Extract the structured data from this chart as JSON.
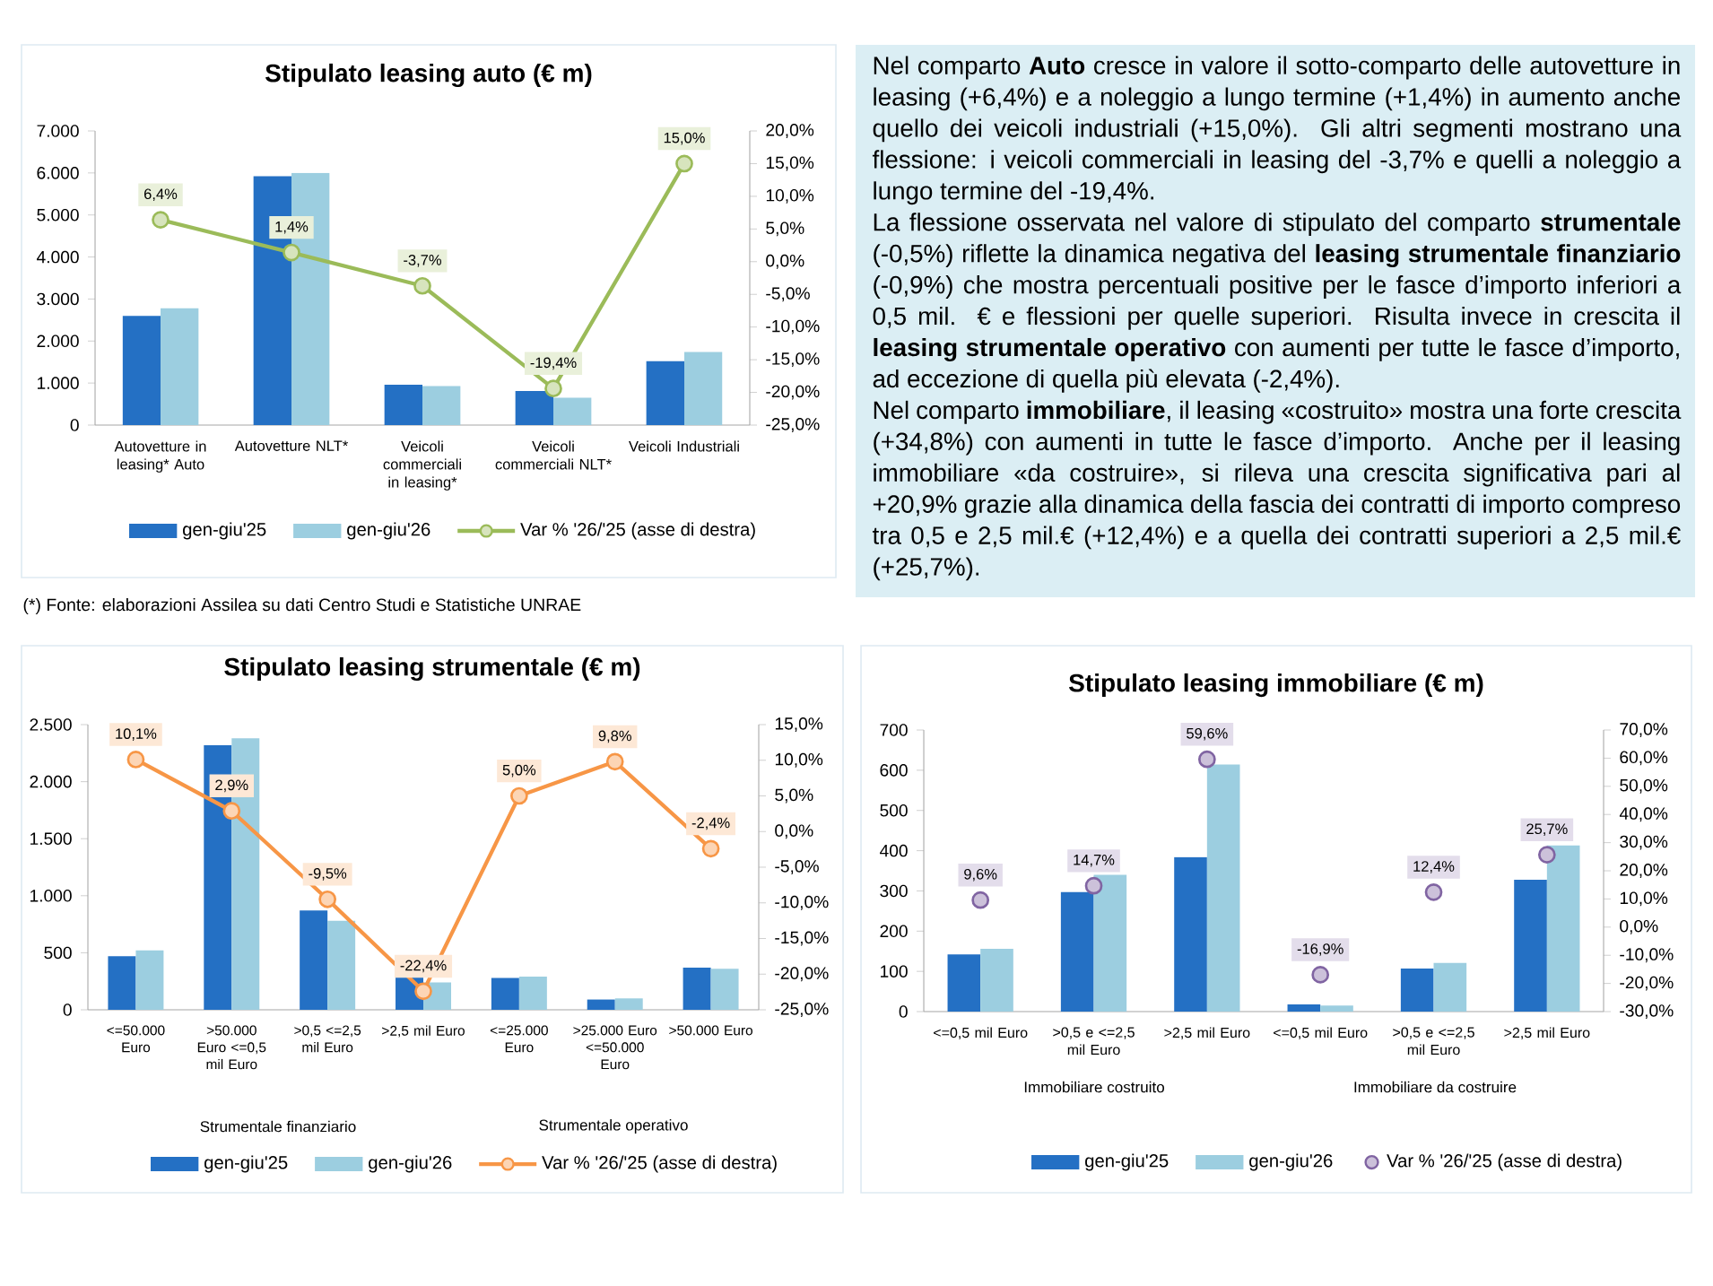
{
  "chart_data": [
    {
      "type": "bar",
      "title": "Stipulato leasing auto (€ m)",
      "categories": [
        "Autovetture in leasing* Auto",
        "Autovetture NLT*",
        "Veicoli commerciali in leasing*",
        "Veicoli commerciali NLT*",
        "Veicoli Industriali"
      ],
      "series": [
        {
          "name": "gen-giu'25",
          "color": "#2470c4",
          "values": [
            2600,
            5920,
            960,
            810,
            1520
          ]
        },
        {
          "name": "gen-giu'26",
          "color": "#9ccee0",
          "values": [
            2780,
            6000,
            930,
            650,
            1740
          ]
        },
        {
          "name": "Var % '26/'25 (asse di destra)",
          "type": "line",
          "axis": "y2",
          "color": "#9bbb59",
          "values": [
            6.4,
            1.4,
            -3.7,
            -19.4,
            15.0
          ],
          "value_labels": [
            "6,4%",
            "1,4%",
            "-3,7%",
            "-19,4%",
            "15,0%"
          ]
        }
      ],
      "ylim": [
        0,
        7000
      ],
      "yticks": [
        0,
        {
          "value": 1000,
          "label": "1.000"
        },
        {
          "value": 2000,
          "label": "2.000"
        },
        {
          "value": 3000,
          "label": "3.000"
        },
        {
          "value": 4000,
          "label": "4.000"
        },
        {
          "value": 5000,
          "label": "5.000"
        },
        {
          "value": 6000,
          "label": "6.000"
        },
        {
          "value": 7000,
          "label": "7.000"
        }
      ],
      "y2lim": [
        -25,
        20
      ],
      "y2ticks": [
        {
          "value": -25,
          "label": "-25,0%"
        },
        {
          "value": -20,
          "label": "-20,0%"
        },
        {
          "value": -15,
          "label": "-15,0%"
        },
        {
          "value": -10,
          "label": "-10,0%"
        },
        {
          "value": -5,
          "label": "-5,0%"
        },
        {
          "value": 0,
          "label": "0,0%"
        },
        {
          "value": 5,
          "label": "5,0%"
        },
        {
          "value": 10,
          "label": "10,0%"
        },
        {
          "value": 15,
          "label": "15,0%"
        },
        {
          "value": 20,
          "label": "20,0%"
        }
      ],
      "marker": "circle",
      "legend": "bottom",
      "annotations": [
        "(*) Fonte: elaborazioni Assilea su dati Centro Studi e Statistiche UNRAE"
      ]
    },
    {
      "type": "other",
      "annotations": [
        "Nel comparto **Auto** cresce in valore il sotto-comparto delle autovetture in leasing (+6,4%) e a noleggio a lungo termine (+1,4%) in aumento anche quello dei veicoli industriali (+15,0%). Gli altri segmenti mostrano una flessione: i veicoli commerciali in leasing del -3,7% e quelli a noleggio a lungo termine del -19,4%.",
        "La flessione osservata nel valore di stipulato del comparto **strumentale** (-0,5%) riflette la dinamica negativa del **leasing strumentale finanziario** (-0,9%) che mostra percentuali positive per le fasce d’importo inferiori a 0,5 mil. € e flessioni per quelle superiori. Risulta invece in crescita il **leasing strumentale operativo** con aumenti per tutte le fasce d’importo, ad eccezione di quella più elevata (-2,4%).",
        "Nel comparto **immobiliare**, il leasing «costruito» mostra una forte crescita (+34,8%) con aumenti in tutte le fasce d’importo. Anche per il leasing immobiliare «da costruire», si rileva una crescita significativa pari al +20,9% grazie alla dinamica della fascia dei contratti di importo compreso tra 0,5 e 2,5 mil.€ (+12,4%) e a quella dei contratti superiori a 2,5 mil.€ (+25,7%)."
      ]
    },
    {
      "type": "bar",
      "title": "Stipulato leasing strumentale (€ m)",
      "categories": [
        "<=50.000 Euro",
        ">50.000 Euro <=0,5 mil Euro",
        ">0,5 <=2,5 mil Euro",
        ">2,5 mil Euro",
        "<=25.000 Euro",
        ">25.000 Euro <=50.000 Euro",
        ">50.000 Euro"
      ],
      "series": [
        {
          "name": "gen-giu'25",
          "color": "#2470c4",
          "values": [
            470,
            2320,
            870,
            300,
            280,
            90,
            370
          ]
        },
        {
          "name": "gen-giu'26",
          "color": "#9ccee0",
          "values": [
            520,
            2380,
            780,
            240,
            290,
            100,
            360
          ]
        },
        {
          "name": "Var % '26/'25 (asse di destra)",
          "type": "line",
          "axis": "y2",
          "color": "#f79646",
          "values": [
            10.1,
            2.9,
            -9.5,
            -22.4,
            5.0,
            9.8,
            -2.4
          ],
          "value_labels": [
            "10,1%",
            "2,9%",
            "-9,5%",
            "-22,4%",
            "5,0%",
            "9,8%",
            "-2,4%"
          ]
        }
      ],
      "ylim": [
        0,
        2500
      ],
      "yticks": [
        0,
        500,
        {
          "value": 1000,
          "label": "1.000"
        },
        {
          "value": 1500,
          "label": "1.500"
        },
        {
          "value": 2000,
          "label": "2.000"
        },
        {
          "value": 2500,
          "label": "2.500"
        }
      ],
      "y2lim": [
        -25,
        15
      ],
      "y2ticks": [
        {
          "value": -25,
          "label": "-25,0%"
        },
        {
          "value": -20,
          "label": "-20,0%"
        },
        {
          "value": -15,
          "label": "-15,0%"
        },
        {
          "value": -10,
          "label": "-10,0%"
        },
        {
          "value": -5,
          "label": "-5,0%"
        },
        {
          "value": 0,
          "label": "0,0%"
        },
        {
          "value": 5,
          "label": "5,0%"
        },
        {
          "value": 10,
          "label": "10,0%"
        },
        {
          "value": 15,
          "label": "15,0%"
        }
      ],
      "marker": "circle",
      "legend": "bottom",
      "annotations": [
        "Strumentale finanziario",
        "Strumentale operativo"
      ]
    },
    {
      "type": "bar",
      "title": "Stipulato leasing immobiliare (€ m)",
      "categories": [
        "<=0,5 mil Euro",
        ">0,5 e <=2,5 mil Euro",
        ">2,5 mil Euro",
        "<=0,5 mil Euro",
        ">0,5 e <=2,5 mil Euro",
        ">2,5 mil Euro"
      ],
      "series": [
        {
          "name": "gen-giu'25",
          "color": "#2470c4",
          "values": [
            142,
            297,
            384,
            18,
            107,
            328
          ]
        },
        {
          "name": "gen-giu'26",
          "color": "#9ccee0",
          "values": [
            156,
            340,
            614,
            15,
            121,
            413
          ]
        },
        {
          "name": "Var % '26/'25 (asse di destra)",
          "type": "scatter",
          "axis": "y2",
          "color": "#8064a2",
          "values": [
            9.6,
            14.7,
            59.6,
            -16.9,
            12.4,
            25.7
          ],
          "value_labels": [
            "9,6%",
            "14,7%",
            "59,6%",
            "-16,9%",
            "12,4%",
            "25,7%"
          ]
        }
      ],
      "ylim": [
        0,
        700
      ],
      "yticks": [
        0,
        100,
        200,
        300,
        400,
        500,
        600,
        700
      ],
      "y2lim": [
        -30,
        70
      ],
      "y2ticks": [
        {
          "value": -30,
          "label": "-30,0%"
        },
        {
          "value": -20,
          "label": "-20,0%"
        },
        {
          "value": -10,
          "label": "-10,0%"
        },
        {
          "value": 0,
          "label": "0,0%"
        },
        {
          "value": 10,
          "label": "10,0%"
        },
        {
          "value": 20,
          "label": "20,0%"
        },
        {
          "value": 30,
          "label": "30,0%"
        },
        {
          "value": 40,
          "label": "40,0%"
        },
        {
          "value": 50,
          "label": "50,0%"
        },
        {
          "value": 60,
          "label": "60,0%"
        },
        {
          "value": 70,
          "label": "70,0%"
        }
      ],
      "marker": "circle",
      "legend": "bottom",
      "annotations": [
        "Immobiliare costruito",
        "Immobiliare da costruire"
      ]
    }
  ]
}
